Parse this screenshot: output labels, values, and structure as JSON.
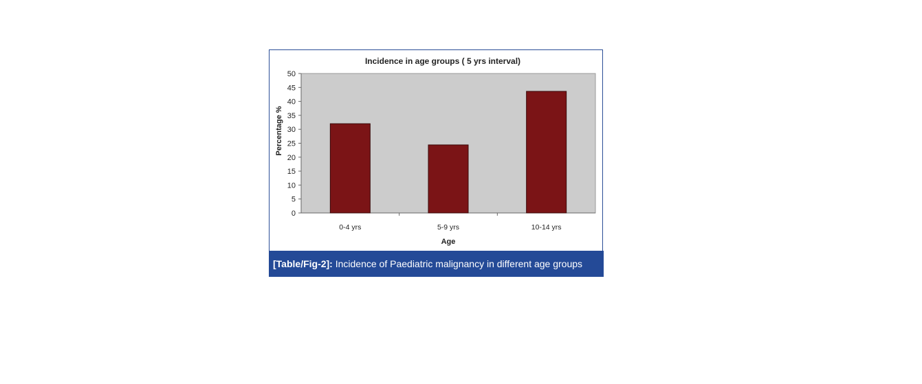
{
  "chart_data": {
    "type": "bar",
    "title": "Incidence in age groups ( 5 yrs interval)",
    "xlabel": "Age",
    "ylabel": "Percentage %",
    "categories": [
      "0-4 yrs",
      "5-9 yrs",
      "10-14 yrs"
    ],
    "values": [
      32,
      24.4,
      43.6
    ],
    "ylim": [
      0,
      50
    ],
    "yticks": [
      0,
      5,
      10,
      15,
      20,
      25,
      30,
      35,
      40,
      45,
      50
    ],
    "grid": false,
    "legend": "none",
    "colors": {
      "bar": "#7b1416",
      "plot_bg": "#cccccc"
    }
  },
  "caption": {
    "label": "[Table/Fig-2]:",
    "text": " Incidence of Paediatric malignancy in different age groups"
  }
}
